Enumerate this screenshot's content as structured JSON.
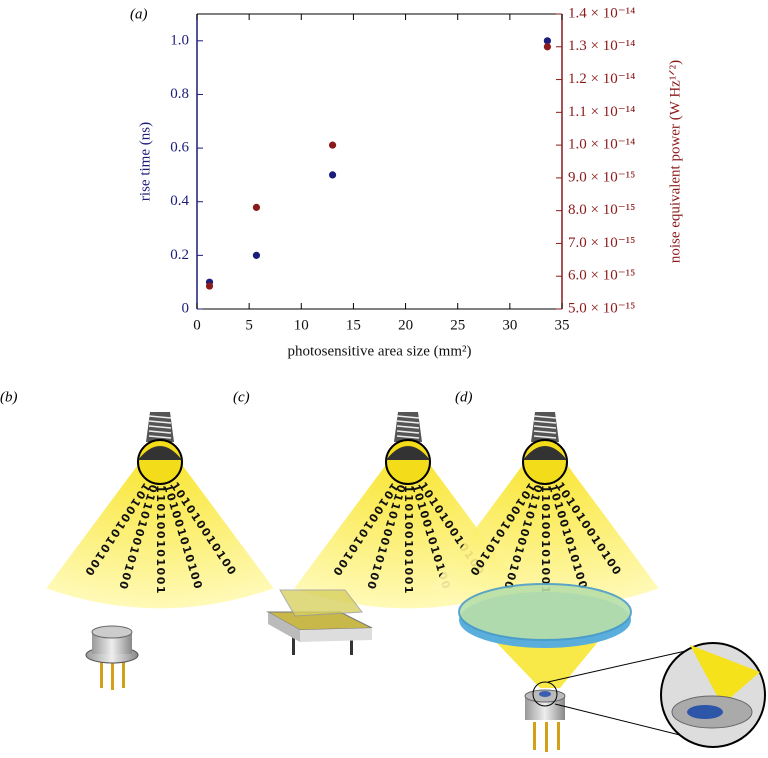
{
  "chart_data": {
    "type": "scatter",
    "panel_label": "(a)",
    "x_label": "photosensitive area size (mm²)",
    "y_label": "rise time (ns)",
    "y2_label": "noise equivalent power (W Hz¹ᐟ²)",
    "x": [
      1.2,
      5.7,
      13,
      33.6
    ],
    "xlim": [
      0,
      35
    ],
    "xticks": [
      0,
      5,
      10,
      15,
      20,
      25,
      30,
      35
    ],
    "ylim": [
      0,
      1.1
    ],
    "yticks": [
      0,
      0.2,
      0.4,
      0.6,
      0.8,
      {
        "value": 1,
        "label": "1.0"
      }
    ],
    "y2lim": [
      5e-15,
      1.4e-14
    ],
    "y2ticks": [
      {
        "value": 5e-15,
        "label": "5.0 × 10⁻¹⁵"
      },
      {
        "value": 6e-15,
        "label": "6.0 × 10⁻¹⁵"
      },
      {
        "value": 7e-15,
        "label": "7.0 × 10⁻¹⁵"
      },
      {
        "value": 8e-15,
        "label": "8.0 × 10⁻¹⁵"
      },
      {
        "value": 9e-15,
        "label": "9.0 × 10⁻¹⁵"
      },
      {
        "value": 1e-14,
        "label": "1.0 × 10⁻¹⁴"
      },
      {
        "value": 1.1e-14,
        "label": "1.1 × 10⁻¹⁴"
      },
      {
        "value": 1.2e-14,
        "label": "1.2 × 10⁻¹⁴"
      },
      {
        "value": 1.3e-14,
        "label": "1.3 × 10⁻¹⁴"
      },
      {
        "value": 1.4e-14,
        "label": "1.4 × 10⁻¹⁴"
      }
    ],
    "left_color": "#1c1c7a",
    "right_color": "#8b1a1a",
    "series": [
      {
        "color": "#1c1c7a",
        "values": [
          0.1,
          0.2,
          0.5,
          1.0
        ]
      },
      {
        "color": "#8b1a1a",
        "axis": "y2",
        "values": [
          5.7e-15,
          8.1e-15,
          1e-14,
          1.3e-14
        ]
      }
    ]
  },
  "illustrations": {
    "panels": [
      {
        "label": "(b)"
      },
      {
        "label": "(c)"
      },
      {
        "label": "(d)"
      }
    ],
    "binary_streams": [
      "1101001010100",
      "1011010010100",
      "1110100101001",
      "1101001010100",
      "1101010010100"
    ]
  }
}
